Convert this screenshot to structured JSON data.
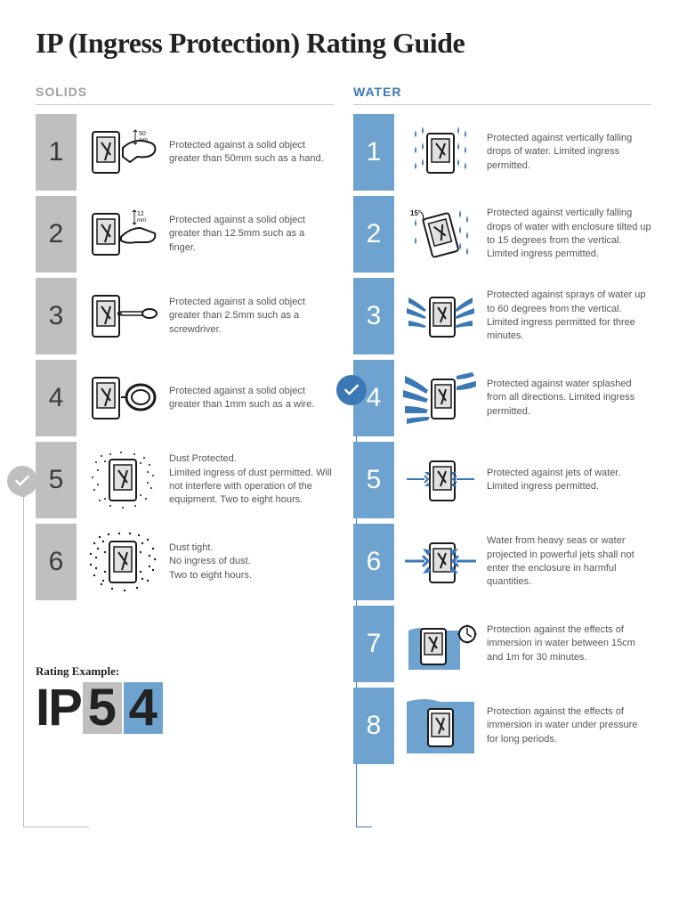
{
  "title": "IP (Ingress Protection) Rating Guide",
  "colors": {
    "solids_header": "#9f9f9f",
    "solids_box": "#bfbfbf",
    "water_header": "#3b78b5",
    "water_box": "#6ea3cf",
    "text": "#555555",
    "background": "#ffffff"
  },
  "example": {
    "label": "Rating Example:",
    "prefix": "IP",
    "solids_digit": "5",
    "water_digit": "4"
  },
  "solids": {
    "header": "SOLIDS",
    "selected_index": 4,
    "rows": [
      {
        "n": "1",
        "desc": "Protected against a solid object greater than 50mm such as a hand."
      },
      {
        "n": "2",
        "desc": "Protected against a solid object greater than 12.5mm such as a finger."
      },
      {
        "n": "3",
        "desc": "Protected against a solid object greater than 2.5mm such as a screwdriver."
      },
      {
        "n": "4",
        "desc": "Protected against a solid object greater than 1mm such as a wire."
      },
      {
        "n": "5",
        "desc": "Dust Protected.\nLimited ingress of dust permitted. Will not interfere with operation of the equipment. Two to eight hours."
      },
      {
        "n": "6",
        "desc": "Dust tight.\nNo ingress of dust.\nTwo to eight hours."
      }
    ]
  },
  "water": {
    "header": "WATER",
    "selected_index": 3,
    "rows": [
      {
        "n": "1",
        "desc": "Protected against vertically falling drops of water. Limited ingress permitted."
      },
      {
        "n": "2",
        "desc": "Protected against vertically falling drops of water with enclosure tilted up to 15 degrees from the vertical. Limited ingress permitted."
      },
      {
        "n": "3",
        "desc": "Protected against sprays of water up to 60 degrees from the vertical.\nLimited ingress permitted for three minutes."
      },
      {
        "n": "4",
        "desc": "Protected against water splashed from all directions. Limited ingress permitted."
      },
      {
        "n": "5",
        "desc": "Protected against jets of water. Limited ingress permitted."
      },
      {
        "n": "6",
        "desc": "Water from heavy seas or water projected in powerful jets shall not enter the enclosure in harmful quantities."
      },
      {
        "n": "7",
        "desc": "Protection against the effects of immersion in water between 15cm and 1m for 30 minutes."
      },
      {
        "n": "8",
        "desc": "Protection against the effects of immersion in water under pressure for long periods."
      }
    ]
  }
}
